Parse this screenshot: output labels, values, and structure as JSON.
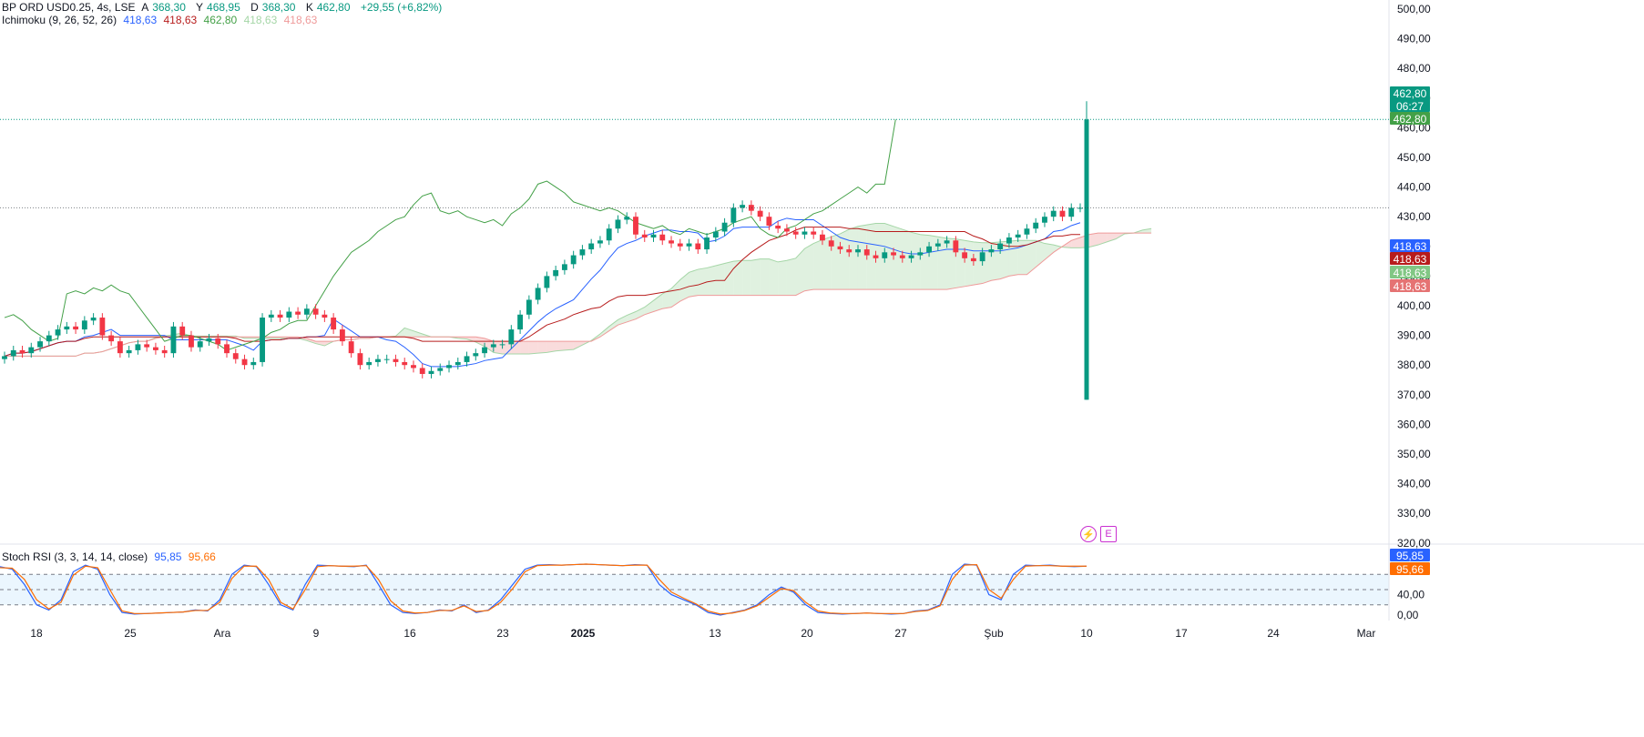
{
  "header": {
    "symbol": "BP ORD USD0.25, 4s, LSE",
    "ohlc": [
      {
        "label": "A",
        "value": "368,30"
      },
      {
        "label": "Y",
        "value": "468,95"
      },
      {
        "label": "D",
        "value": "368,30"
      },
      {
        "label": "K",
        "value": "462,80"
      }
    ],
    "change": "+29,55 (+6,82%)"
  },
  "ichimoku": {
    "label": "Ichimoku (9, 26, 52, 26)",
    "values": [
      "418,63",
      "418,63",
      "462,80",
      "418,63",
      "418,63"
    ],
    "colors": [
      "#2962ff",
      "#b71c1c",
      "#43a047",
      "#a5d6a7",
      "#ef9a9a"
    ]
  },
  "stoch": {
    "label": "Stoch RSI (3, 3, 14, 14, close)",
    "k_value": "95,85",
    "d_value": "95,66",
    "k_color": "#2962ff",
    "d_color": "#ff6d00"
  },
  "price_badges": {
    "last": "462,80",
    "countdown": "06:27",
    "close": "462,80",
    "tenkan": "418,63",
    "kijun": "418,63",
    "span_a": "418,63",
    "span_b": "418,63",
    "stoch_k": "95,85",
    "stoch_d": "95,66"
  },
  "colors": {
    "up": "#089981",
    "down": "#f23645",
    "tenkan": "#2962ff",
    "kijun": "#b71c1c",
    "chikou": "#43a047",
    "cloud_bull": "#a5d6a7",
    "cloud_bear": "#ef9a9a"
  },
  "icons": [
    "lightning-icon",
    "earnings-e-icon"
  ],
  "chart_data": [
    {
      "type": "candlestick",
      "title": "BP ORD USD0.25, 4s, LSE",
      "ylim": [
        312,
        505
      ],
      "y_ticks": [
        "500,00",
        "490,00",
        "480,00",
        "470,00",
        "460,00",
        "450,00",
        "440,00",
        "430,00",
        "420,00",
        "410,00",
        "400,00",
        "390,00",
        "380,00",
        "370,00",
        "360,00",
        "350,00",
        "340,00",
        "330,00",
        "320,00"
      ],
      "x_ticks": [
        "18",
        "25",
        "Ara",
        "9",
        "16",
        "23",
        "2025",
        "13",
        "20",
        "27",
        "Şub",
        "10",
        "17",
        "24",
        "Mar"
      ],
      "close_series": [
        383,
        385,
        384,
        386,
        388,
        390,
        392,
        393,
        392,
        395,
        396,
        390,
        388,
        384,
        385,
        387,
        386,
        385,
        384,
        393,
        390,
        386,
        388,
        389,
        387,
        384,
        382,
        380,
        381,
        396,
        397,
        396,
        398,
        397,
        399,
        397,
        396,
        392,
        388,
        384,
        380,
        381,
        382,
        382,
        381,
        380,
        379,
        377,
        378,
        379,
        380,
        381,
        383,
        384,
        386,
        387,
        387,
        392,
        397,
        402,
        406,
        410,
        412,
        414,
        417,
        419,
        421,
        422,
        426,
        429,
        430,
        424,
        423,
        424,
        422,
        421,
        420,
        421,
        419,
        423,
        425,
        428,
        433,
        434,
        432,
        430,
        427,
        426,
        425,
        424,
        425,
        424,
        422,
        420,
        419,
        418,
        419,
        417,
        416,
        418,
        417,
        416,
        417,
        418,
        420,
        421,
        422,
        418,
        416,
        415,
        418,
        419,
        421,
        423,
        424,
        426,
        428,
        430,
        432,
        430,
        433,
        433
      ],
      "last_price": 462.8,
      "last_candle": {
        "open": 368.3,
        "high": 468.95,
        "low": 368.3,
        "close": 462.8
      },
      "tenkan_value": 418.63,
      "kijun_value": 418.63,
      "span_a_value": 418.63,
      "span_b_value": 418.63,
      "chikou_value": 462.8
    },
    {
      "type": "line",
      "title": "Stoch RSI (3, 3, 14, 14, close)",
      "ylim": [
        -5,
        105
      ],
      "y_ticks": [
        "40,00",
        "0,00"
      ],
      "bands": [
        20,
        50,
        80
      ],
      "series": [
        {
          "name": "K",
          "values": [
            95,
            90,
            60,
            20,
            10,
            30,
            85,
            98,
            90,
            40,
            5,
            2,
            3,
            4,
            5,
            6,
            10,
            8,
            30,
            80,
            98,
            95,
            60,
            20,
            10,
            60,
            98,
            97,
            96,
            95,
            98,
            60,
            20,
            5,
            3,
            5,
            10,
            8,
            20,
            5,
            10,
            30,
            60,
            90,
            98,
            99,
            98,
            99,
            100,
            99,
            98,
            97,
            99,
            98,
            60,
            40,
            30,
            20,
            5,
            0,
            5,
            10,
            20,
            40,
            55,
            45,
            20,
            5,
            3,
            2,
            3,
            4,
            3,
            2,
            3,
            8,
            10,
            20,
            80,
            100,
            98,
            40,
            30,
            80,
            98,
            97,
            98,
            96,
            95,
            96
          ]
        },
        {
          "name": "D",
          "values": [
            93,
            92,
            70,
            30,
            12,
            25,
            78,
            96,
            93,
            50,
            8,
            3,
            3,
            4,
            5,
            6,
            9,
            9,
            25,
            72,
            96,
            96,
            70,
            25,
            12,
            50,
            95,
            97,
            96,
            96,
            97,
            70,
            28,
            8,
            4,
            5,
            9,
            9,
            18,
            7,
            9,
            25,
            52,
            85,
            97,
            98,
            98,
            99,
            100,
            99,
            98,
            97,
            98,
            98,
            70,
            45,
            33,
            22,
            8,
            2,
            4,
            9,
            18,
            35,
            52,
            48,
            25,
            8,
            4,
            3,
            3,
            4,
            3,
            3,
            3,
            7,
            9,
            18,
            70,
            98,
            99,
            50,
            33,
            70,
            96,
            97,
            97,
            96,
            96,
            96
          ]
        }
      ]
    }
  ]
}
